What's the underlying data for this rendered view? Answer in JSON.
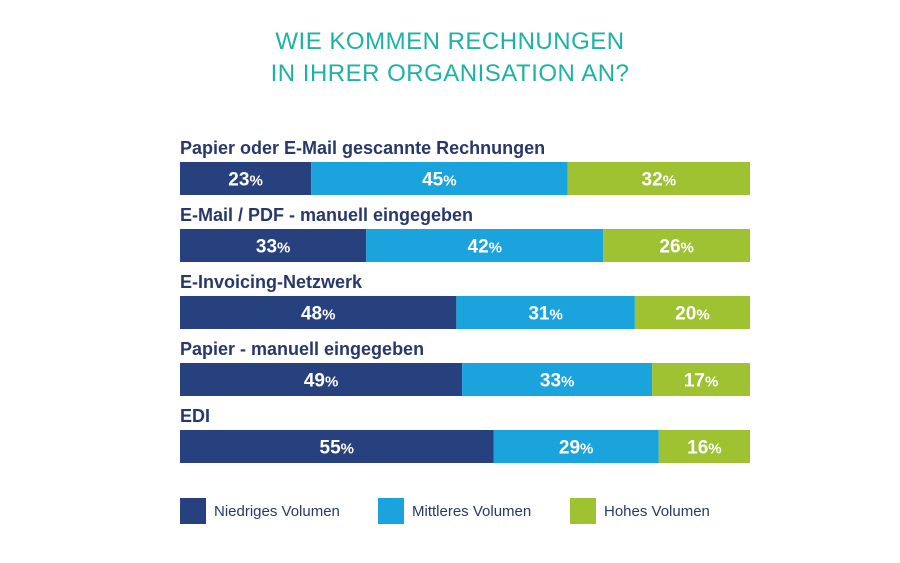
{
  "title": [
    "WIE KOMMEN RECHNUNGEN",
    "IN IHRER ORGANISATION AN?"
  ],
  "colors": {
    "title": "#1bb3a5",
    "label": "#27386b",
    "series": [
      "#27407e",
      "#1ba3dd",
      "#9ec232"
    ]
  },
  "legend": [
    "Niedriges Volumen",
    "Mittleres Volumen",
    "Hohes Volumen"
  ],
  "chart_data": {
    "type": "bar",
    "orientation": "horizontal",
    "stacked": true,
    "title": "WIE KOMMEN RECHNUNGEN IN IHRER ORGANISATION AN?",
    "unit": "%",
    "legend_position": "bottom",
    "categories": [
      "Papier oder E-Mail gescannte Rechnungen",
      "E-Mail / PDF - manuell eingegeben",
      "E-Invoicing-Netzwerk",
      "Papier - manuell eingegeben",
      "EDI"
    ],
    "series": [
      {
        "name": "Niedriges Volumen",
        "values": [
          23,
          33,
          48,
          49,
          55
        ]
      },
      {
        "name": "Mittleres Volumen",
        "values": [
          45,
          42,
          31,
          33,
          29
        ]
      },
      {
        "name": "Hohes Volumen",
        "values": [
          32,
          26,
          20,
          17,
          16
        ]
      }
    ]
  }
}
